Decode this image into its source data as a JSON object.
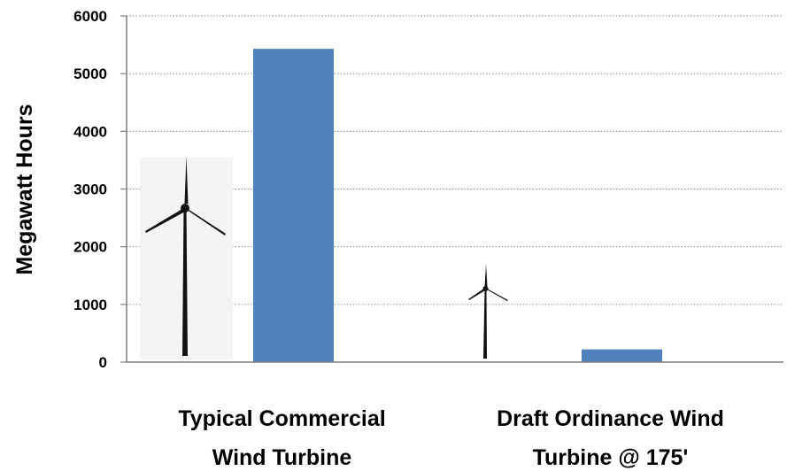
{
  "chart_data": {
    "type": "bar",
    "ylabel": "Megawatt Hours",
    "ylim": [
      0,
      6000
    ],
    "yticks": [
      0,
      1000,
      2000,
      3000,
      4000,
      5000,
      6000
    ],
    "grid": true,
    "categories": [
      [
        "Typical Commercial",
        "Wind Turbine"
      ],
      [
        "Draft Ordinance Wind",
        "Turbine @ 175'"
      ]
    ],
    "values": [
      5430,
      220
    ],
    "bar_color": "#4f81bd"
  }
}
